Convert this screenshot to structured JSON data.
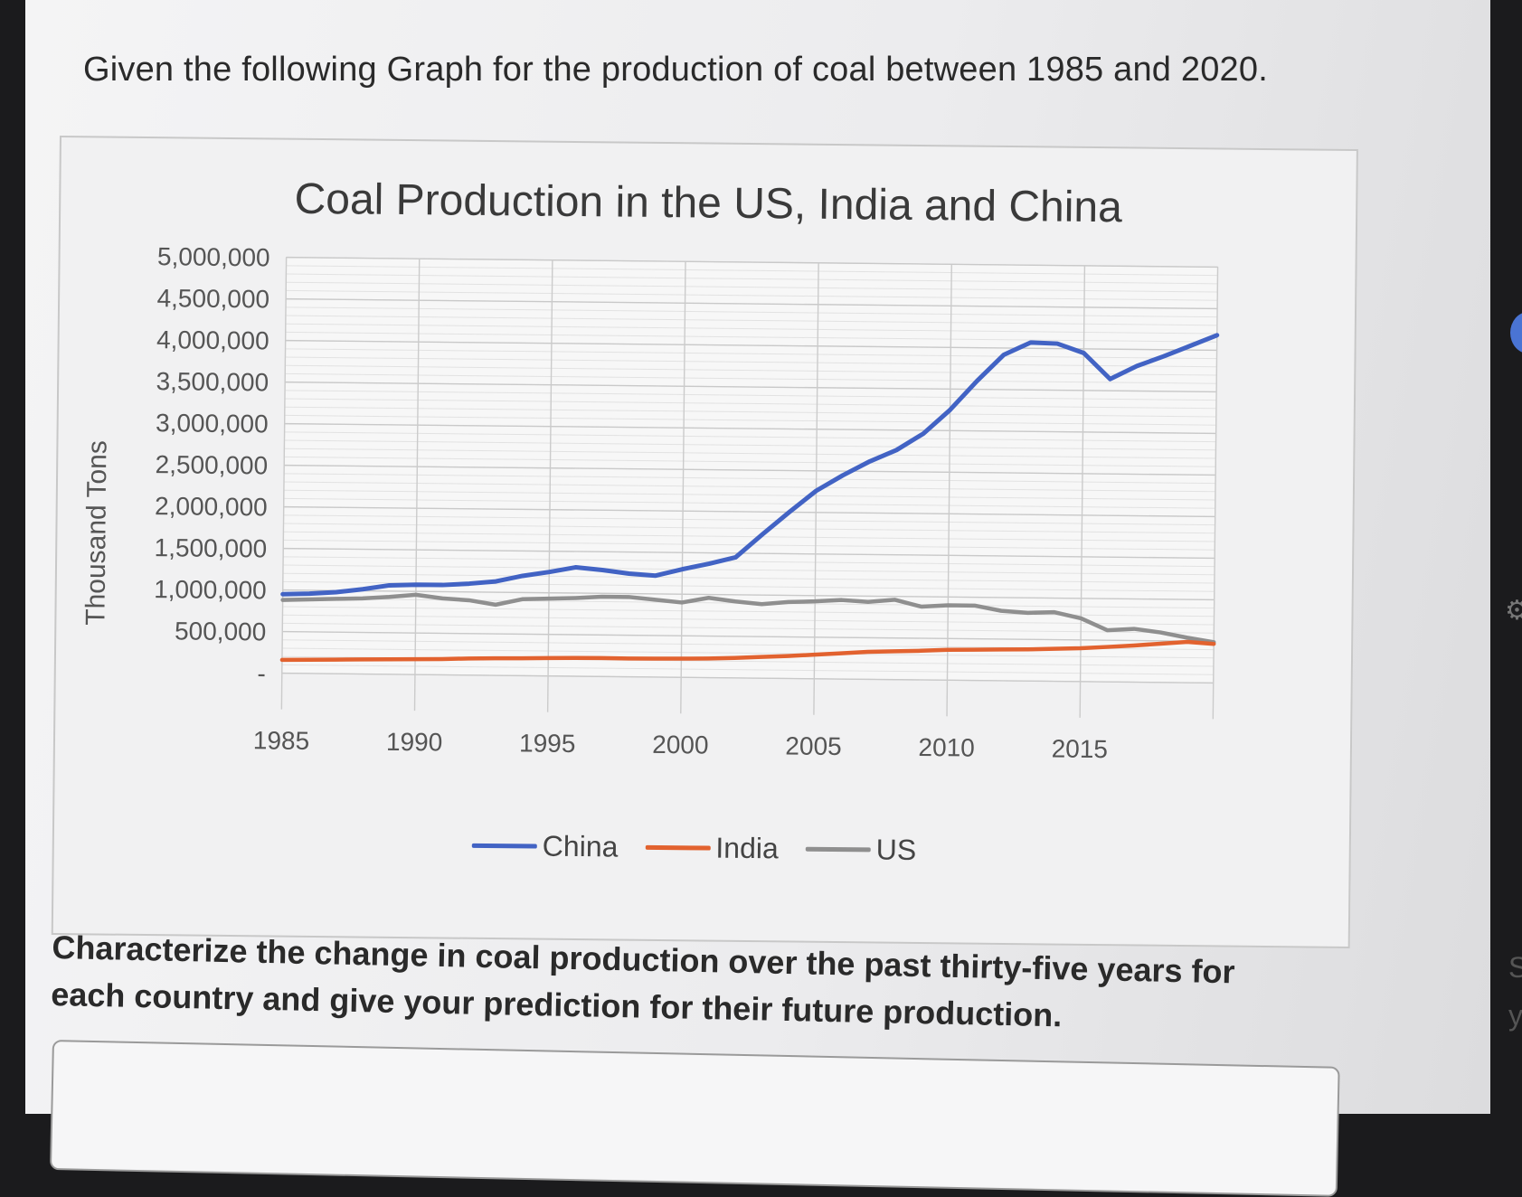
{
  "question": "Given the following Graph for the production of coal between 1985 and 2020.",
  "prompt": "Characterize the change in coal production over the past thirty-five years for each country and give your prediction for their future production.",
  "side": {
    "s": "S",
    "y": "y"
  },
  "chart_data": {
    "type": "line",
    "title": "Coal Production in the US, India and China",
    "ylabel": "Thousand Tons",
    "xlabel": "",
    "xlim": [
      1985,
      2020
    ],
    "ylim": [
      0,
      5000000
    ],
    "x_ticks": [
      "1985",
      "1990",
      "1995",
      "2000",
      "2005",
      "2010",
      "2015"
    ],
    "y_ticks": [
      "-",
      "500,000",
      "1,000,000",
      "1,500,000",
      "2,000,000",
      "2,500,000",
      "3,000,000",
      "3,500,000",
      "4,000,000",
      "4,500,000",
      "5,000,000"
    ],
    "legend_position": "bottom",
    "grid": true,
    "x": [
      1985,
      1986,
      1987,
      1988,
      1989,
      1990,
      1991,
      1992,
      1993,
      1994,
      1995,
      1996,
      1997,
      1998,
      1999,
      2000,
      2001,
      2002,
      2003,
      2004,
      2005,
      2006,
      2007,
      2008,
      2009,
      2010,
      2011,
      2012,
      2013,
      2014,
      2015,
      2016,
      2017,
      2018,
      2019,
      2020
    ],
    "series": [
      {
        "name": "China",
        "color": "#4263c4",
        "values": [
          950000,
          960000,
          980000,
          1020000,
          1070000,
          1080000,
          1080000,
          1100000,
          1130000,
          1200000,
          1250000,
          1310000,
          1280000,
          1240000,
          1220000,
          1300000,
          1370000,
          1450000,
          1730000,
          2000000,
          2260000,
          2450000,
          2620000,
          2760000,
          2960000,
          3250000,
          3600000,
          3920000,
          4070000,
          4060000,
          3950000,
          3640000,
          3800000,
          3920000,
          4050000,
          4180000
        ]
      },
      {
        "name": "India",
        "color": "#e2622f",
        "values": [
          160000,
          165000,
          170000,
          175000,
          180000,
          185000,
          190000,
          200000,
          205000,
          210000,
          215000,
          220000,
          222000,
          220000,
          222000,
          225000,
          230000,
          240000,
          255000,
          270000,
          290000,
          310000,
          330000,
          340000,
          350000,
          365000,
          370000,
          375000,
          380000,
          390000,
          400000,
          420000,
          440000,
          465000,
          490000,
          470000
        ]
      },
      {
        "name": "US",
        "color": "#8f8f8f",
        "values": [
          880000,
          890000,
          900000,
          910000,
          930000,
          960000,
          920000,
          900000,
          850000,
          920000,
          930000,
          940000,
          960000,
          960000,
          930000,
          900000,
          960000,
          920000,
          890000,
          920000,
          930000,
          950000,
          930000,
          960000,
          880000,
          900000,
          900000,
          840000,
          820000,
          830000,
          760000,
          620000,
          640000,
          600000,
          540000,
          490000
        ]
      }
    ]
  }
}
